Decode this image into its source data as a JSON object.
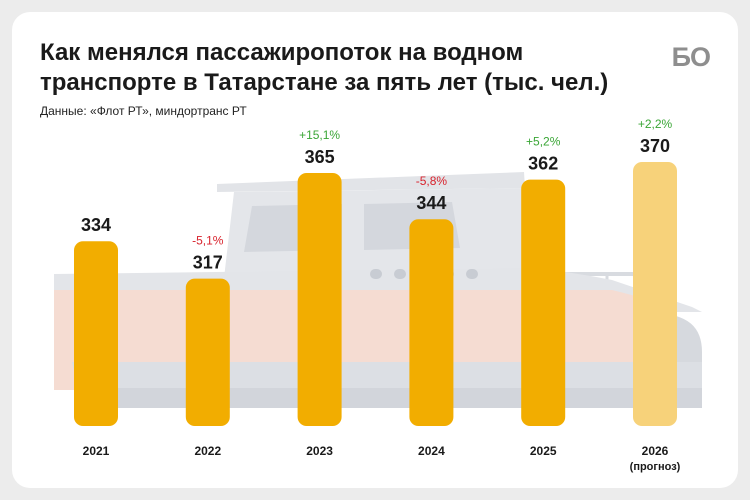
{
  "header": {
    "title_line1": "Как менялся пассажиропоток на водном",
    "title_line2": "транспорте в Татарстане за пять лет (тыс. чел.)",
    "source": "Данные: «Флот РТ», миндортранс РТ",
    "logo": "БО"
  },
  "colors": {
    "bar": "#f2ad00",
    "bar_forecast": "#f7d27a",
    "positive": "#3aa636",
    "negative": "#d8222c"
  },
  "chart_data": {
    "type": "bar",
    "categories": [
      "2021",
      "2022",
      "2023",
      "2024",
      "2025",
      "2026"
    ],
    "values": [
      334,
      317,
      365,
      344,
      362,
      370
    ],
    "changes": [
      "",
      "-5,1%",
      "+15,1%",
      "-5,8%",
      "+5,2%",
      "+2,2%"
    ],
    "change_sign": [
      "",
      "negative",
      "positive",
      "negative",
      "positive",
      "positive"
    ],
    "forecast": [
      false,
      false,
      false,
      false,
      false,
      true
    ],
    "category_notes": [
      "",
      "",
      "",
      "",
      "",
      "(прогноз)"
    ],
    "title": "Как менялся пассажиропоток на водном транспорте в Татарстане за пять лет (тыс. чел.)",
    "xlabel": "",
    "ylabel": "",
    "grid": false,
    "legend": "none"
  }
}
